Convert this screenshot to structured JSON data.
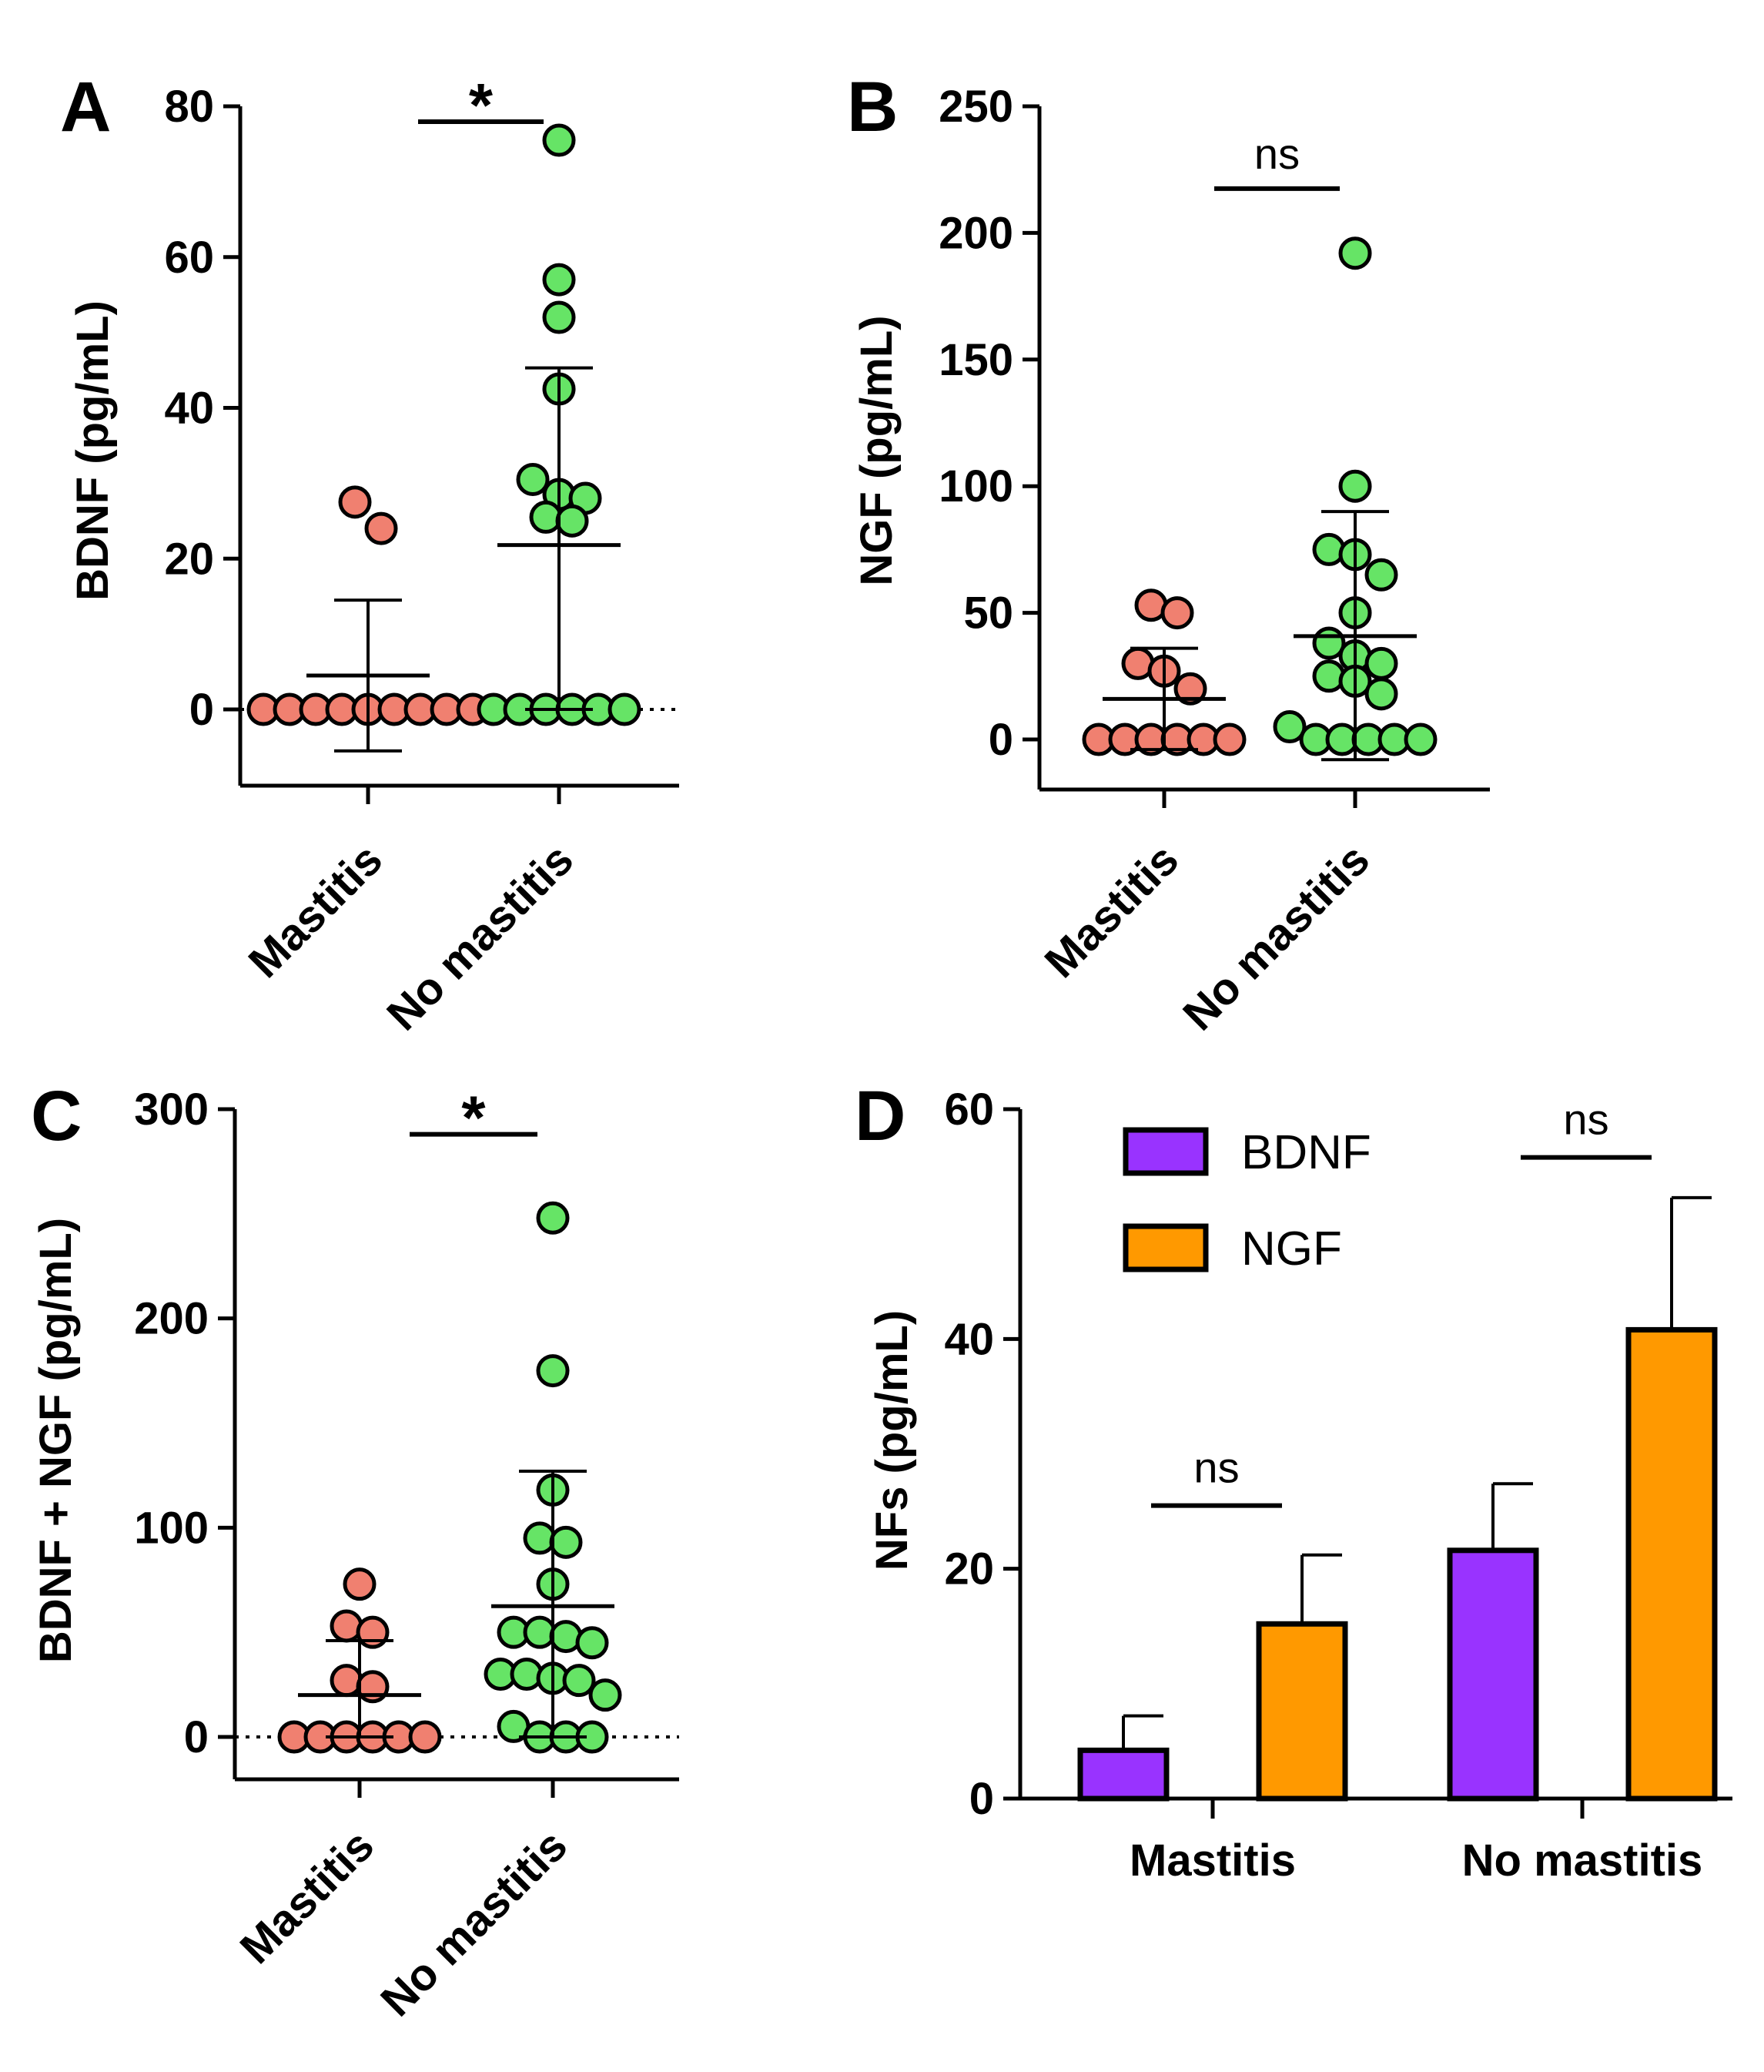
{
  "chart_data": [
    {
      "id": "A",
      "type": "scatter",
      "panel_label": "A",
      "ylabel": "BDNF (pg/mL)",
      "ylim": [
        -10,
        80
      ],
      "yticks": [
        0,
        20,
        40,
        60,
        80
      ],
      "zero_line": true,
      "categories": [
        "Mastitis",
        "No mastitis"
      ],
      "series": [
        {
          "name": "Mastitis",
          "color": "#F08070",
          "values": [
            27.5,
            24,
            0,
            0,
            0,
            0,
            0,
            0,
            0,
            0,
            0
          ],
          "mean": 4.5,
          "sd_upper": 14.5,
          "sd_lower": -5.5
        },
        {
          "name": "No mastitis",
          "color": "#66E466",
          "values": [
            75.5,
            57,
            52,
            42.5,
            30.5,
            28.5,
            28,
            25.5,
            25,
            0,
            0,
            0,
            0,
            0,
            0
          ],
          "mean": 21.8,
          "sd_upper": 45.3,
          "sd_lower": 0
        }
      ],
      "significance": {
        "label": "*",
        "from": "Mastitis",
        "to": "No mastitis"
      }
    },
    {
      "id": "B",
      "type": "scatter",
      "panel_label": "B",
      "ylabel": "NGF (pg/mL)",
      "ylim": [
        -20,
        250
      ],
      "yticks": [
        0,
        50,
        100,
        150,
        200,
        250
      ],
      "zero_line": false,
      "categories": [
        "Mastitis",
        "No mastitis"
      ],
      "series": [
        {
          "name": "Mastitis",
          "color": "#F08070",
          "values": [
            53,
            50,
            30,
            27,
            20,
            0,
            0,
            0,
            0,
            0,
            0
          ],
          "mean": 16,
          "sd_upper": 36,
          "sd_lower": -4
        },
        {
          "name": "No mastitis",
          "color": "#66E466",
          "values": [
            192,
            100,
            75,
            73,
            65,
            50,
            38,
            33,
            30,
            25,
            23,
            18,
            5,
            0,
            0,
            0,
            0,
            0
          ],
          "mean": 40.8,
          "sd_upper": 90,
          "sd_lower": -8
        }
      ],
      "significance": {
        "label": "ns",
        "from": "Mastitis",
        "to": "No mastitis"
      }
    },
    {
      "id": "C",
      "type": "scatter",
      "panel_label": "C",
      "ylabel": "BDNF + NGF (pg/mL)",
      "ylim": [
        -20,
        300
      ],
      "yticks": [
        0,
        100,
        200,
        300
      ],
      "zero_line": true,
      "categories": [
        "Mastitis",
        "No mastitis"
      ],
      "series": [
        {
          "name": "Mastitis",
          "color": "#F08070",
          "values": [
            73,
            53,
            50,
            27,
            24,
            0,
            0,
            0,
            0,
            0,
            0
          ],
          "mean": 20,
          "sd_upper": 46,
          "sd_lower": 0
        },
        {
          "name": "No mastitis",
          "color": "#66E466",
          "values": [
            248,
            175,
            118,
            95,
            93,
            73,
            50,
            50,
            48,
            45,
            30,
            30,
            28,
            27,
            20,
            5,
            0,
            0,
            0
          ],
          "mean": 62.5,
          "sd_upper": 127,
          "sd_lower": 0
        }
      ],
      "significance": {
        "label": "*",
        "from": "Mastitis",
        "to": "No mastitis"
      }
    },
    {
      "id": "D",
      "type": "bar",
      "panel_label": "D",
      "ylabel": "NFs (pg/mL)",
      "ylim": [
        0,
        60
      ],
      "yticks": [
        0,
        20,
        40,
        60
      ],
      "categories": [
        "Mastitis",
        "No mastitis"
      ],
      "series": [
        {
          "name": "BDNF",
          "color": "#9933FF",
          "values": [
            4.2,
            21.6
          ],
          "errors": [
            3.0,
            5.8
          ]
        },
        {
          "name": "NGF",
          "color": "#FF9900",
          "values": [
            15.2,
            40.8
          ],
          "errors": [
            6.0,
            11.5
          ]
        }
      ],
      "significance": [
        {
          "label": "ns",
          "category": "Mastitis"
        },
        {
          "label": "ns",
          "category": "No mastitis"
        }
      ],
      "legend_position": "top-left"
    }
  ]
}
